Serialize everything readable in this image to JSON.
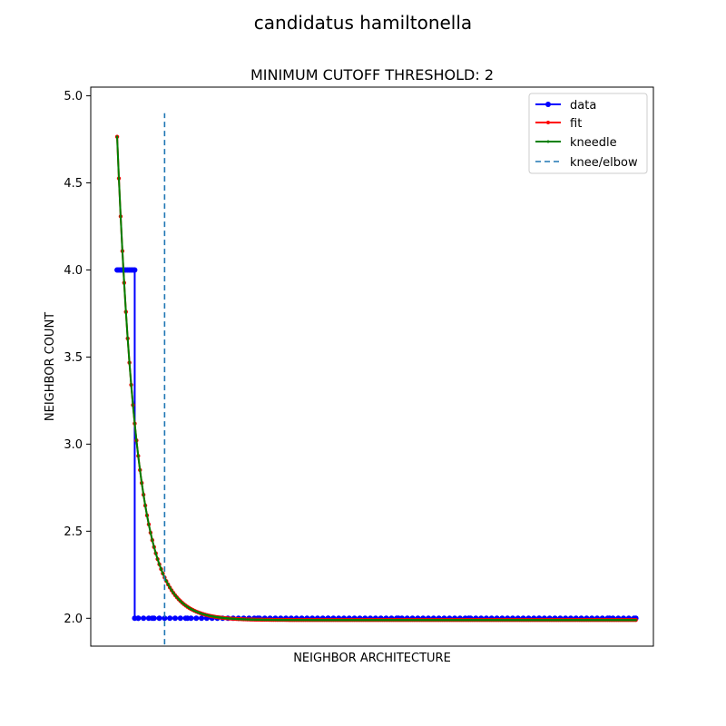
{
  "chart_data": {
    "type": "line",
    "suptitle": "candidatus hamiltonella",
    "title": "MINIMUM CUTOFF THRESHOLD: 2",
    "xlabel": "NEIGHBOR ARCHITECTURE",
    "ylabel": "NEIGHBOR COUNT",
    "ylim": [
      1.84,
      5.05
    ],
    "xlim": [
      -15,
      305
    ],
    "yticks": [
      2.0,
      2.5,
      3.0,
      3.5,
      4.0,
      4.5,
      5.0
    ],
    "ytick_labels": [
      "2.0",
      "2.5",
      "3.0",
      "3.5",
      "4.0",
      "4.5",
      "5.0"
    ],
    "legend_position": "top-right",
    "data_series": {
      "name": "data",
      "color": "#0000ff",
      "x": [
        0,
        1,
        2,
        3,
        4,
        5,
        6,
        7,
        8,
        9,
        10,
        10,
        12,
        20,
        40,
        80,
        120,
        160,
        200,
        240,
        280,
        295
      ],
      "y": [
        4.0,
        4.0,
        4.0,
        4.0,
        4.0,
        4.0,
        4.0,
        4.0,
        4.0,
        4.0,
        4.0,
        2.0,
        2.0,
        2.0,
        2.0,
        2.0,
        2.0,
        2.0,
        2.0,
        2.0,
        2.0,
        2.0
      ]
    },
    "fit_series": {
      "name": "fit",
      "color": "#ff0000",
      "model": "exponential decay",
      "amplitude": 2.775,
      "rate": 0.09,
      "asymptote": 1.99,
      "x_range": [
        0,
        295
      ]
    },
    "kneedle_series": {
      "name": "kneedle",
      "color": "#008000"
    },
    "knee": {
      "name": "knee/elbow",
      "color": "#1f77b4",
      "x": 27,
      "y_range": [
        1.85,
        4.9
      ]
    }
  }
}
